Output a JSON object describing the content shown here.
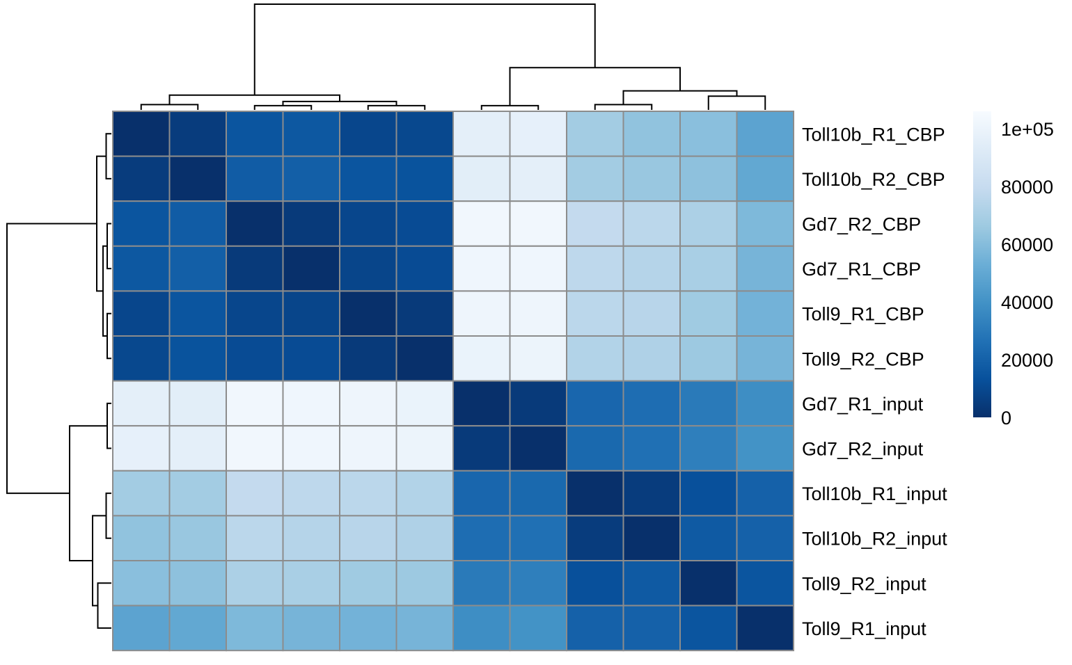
{
  "chart_data": {
    "type": "heatmap",
    "title": "",
    "xlabel": "",
    "ylabel": "",
    "rows": [
      "Toll10b_R1_CBP",
      "Toll10b_R2_CBP",
      "Gd7_R2_CBP",
      "Gd7_R1_CBP",
      "Toll9_R1_CBP",
      "Toll9_R2_CBP",
      "Gd7_R1_input",
      "Gd7_R2_input",
      "Toll10b_R1_input",
      "Toll10b_R2_input",
      "Toll9_R2_input",
      "Toll9_R1_input"
    ],
    "values": [
      [
        0,
        5000,
        15000,
        16000,
        9000,
        9500,
        96000,
        97000,
        68000,
        63000,
        61000,
        48000
      ],
      [
        5000,
        0,
        18000,
        19000,
        15000,
        14000,
        95000,
        96000,
        68000,
        65000,
        62000,
        50000
      ],
      [
        15000,
        18000,
        0,
        4000,
        9000,
        11000,
        103000,
        103000,
        79000,
        76000,
        71000,
        58000
      ],
      [
        16000,
        19000,
        4000,
        0,
        8500,
        11000,
        102000,
        102000,
        77000,
        74000,
        70000,
        56000
      ],
      [
        9000,
        15000,
        9000,
        8500,
        0,
        4000,
        101000,
        101000,
        76000,
        75000,
        67000,
        55000
      ],
      [
        9500,
        14000,
        11000,
        11000,
        4000,
        0,
        99000,
        100000,
        73000,
        72000,
        66000,
        56000
      ],
      [
        96000,
        95000,
        103000,
        102000,
        101000,
        99000,
        0,
        4000,
        22000,
        25000,
        30000,
        38000
      ],
      [
        97000,
        96000,
        103000,
        102000,
        101000,
        100000,
        4000,
        0,
        23000,
        26000,
        32000,
        40000
      ],
      [
        68000,
        68000,
        79000,
        77000,
        76000,
        73000,
        22000,
        23000,
        0,
        5000,
        13000,
        20000
      ],
      [
        63000,
        65000,
        76000,
        74000,
        75000,
        72000,
        25000,
        26000,
        5000,
        0,
        17000,
        20000
      ],
      [
        61000,
        62000,
        71000,
        70000,
        67000,
        66000,
        30000,
        32000,
        13000,
        17000,
        0,
        15000
      ],
      [
        48000,
        50000,
        58000,
        56000,
        55000,
        56000,
        38000,
        40000,
        20000,
        20000,
        15000,
        0
      ]
    ],
    "colorbar": {
      "min": 0,
      "max": 106000,
      "ticks": [
        {
          "value": 0,
          "label": "0"
        },
        {
          "value": 20000,
          "label": "20000"
        },
        {
          "value": 40000,
          "label": "40000"
        },
        {
          "value": 60000,
          "label": "60000"
        },
        {
          "value": 80000,
          "label": "80000"
        },
        {
          "value": 100000,
          "label": "1e+05"
        }
      ],
      "colors": [
        "#08306b",
        "#08519c",
        "#2171b5",
        "#4292c6",
        "#6baed6",
        "#9ecae1",
        "#c6dbef",
        "#deebf7",
        "#f7fbff"
      ]
    },
    "cell_border_color": "#8c8c8c",
    "dendrogram": {
      "linkage_order": "rows and columns share the same order",
      "merges": [
        {
          "left": 0,
          "right": 1,
          "height": 0.05
        },
        {
          "left": 2,
          "right": 3,
          "height": 0.04
        },
        {
          "left": 4,
          "right": 5,
          "height": 0.04
        },
        {
          "left": "m2",
          "right": "m3",
          "height": 0.08
        },
        {
          "left": "m1",
          "right": "m4",
          "height": 0.14
        },
        {
          "left": 6,
          "right": 7,
          "height": 0.04
        },
        {
          "left": 8,
          "right": 9,
          "height": 0.05
        },
        {
          "left": 10,
          "right": 11,
          "height": 0.13
        },
        {
          "left": "m7",
          "right": "m8",
          "height": 0.18
        },
        {
          "left": "m6",
          "right": "m9",
          "height": 0.4
        },
        {
          "left": "m5",
          "right": "m10",
          "height": 1.0
        }
      ]
    }
  }
}
